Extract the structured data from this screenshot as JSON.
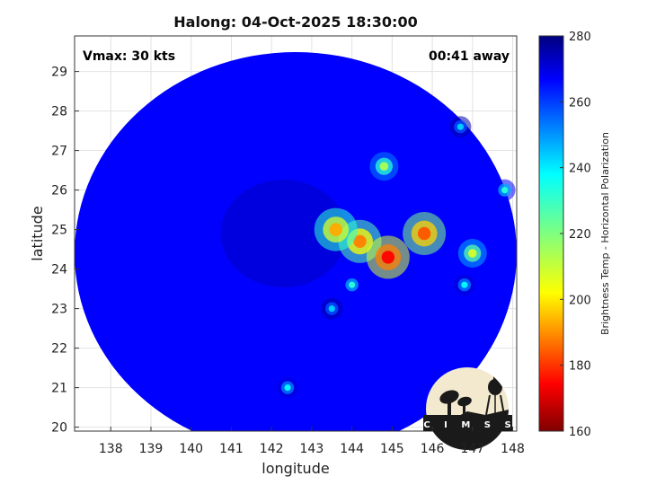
{
  "chart_data": {
    "type": "heatmap",
    "title": "Halong: 04-Oct-2025 18:30:00",
    "annotations": {
      "vmax": "Vmax: 30 kts",
      "time_offset": "00:41 away"
    },
    "xlabel": "longitude",
    "ylabel": "latitude",
    "xlim": [
      137.1,
      148.1
    ],
    "ylim": [
      19.9,
      29.9
    ],
    "x_ticks": [
      138,
      139,
      140,
      141,
      142,
      143,
      144,
      145,
      146,
      147,
      148
    ],
    "y_ticks": [
      20,
      21,
      22,
      23,
      24,
      25,
      26,
      27,
      28,
      29
    ],
    "grid": true,
    "colorbar": {
      "label": "Brightness Temp - Horizontal Polarization",
      "range": [
        160,
        280
      ],
      "ticks": [
        160,
        180,
        200,
        220,
        240,
        260,
        280
      ],
      "colormap": "jet",
      "position": "right"
    },
    "swath_center": {
      "lon": 142.6,
      "lat": 24.4
    },
    "background_value": 265,
    "features": [
      {
        "lon": 144.2,
        "lat": 24.7,
        "value": 190
      },
      {
        "lon": 144.9,
        "lat": 24.3,
        "value": 175
      },
      {
        "lon": 143.6,
        "lat": 25.0,
        "value": 195
      },
      {
        "lon": 144.0,
        "lat": 23.6,
        "value": 230
      },
      {
        "lon": 143.5,
        "lat": 23.0,
        "value": 240
      },
      {
        "lon": 144.8,
        "lat": 26.6,
        "value": 215
      },
      {
        "lon": 145.8,
        "lat": 24.9,
        "value": 185
      },
      {
        "lon": 147.0,
        "lat": 24.4,
        "value": 210
      },
      {
        "lon": 146.8,
        "lat": 23.6,
        "value": 235
      },
      {
        "lon": 142.4,
        "lat": 21.0,
        "value": 235
      },
      {
        "lon": 147.8,
        "lat": 26.0,
        "value": 230
      },
      {
        "lon": 146.7,
        "lat": 27.6,
        "value": 240
      }
    ]
  },
  "logo": {
    "text": "CIMSS",
    "colors": {
      "sky": "#f2e9cf",
      "silhouette": "#1a1a1a"
    }
  }
}
